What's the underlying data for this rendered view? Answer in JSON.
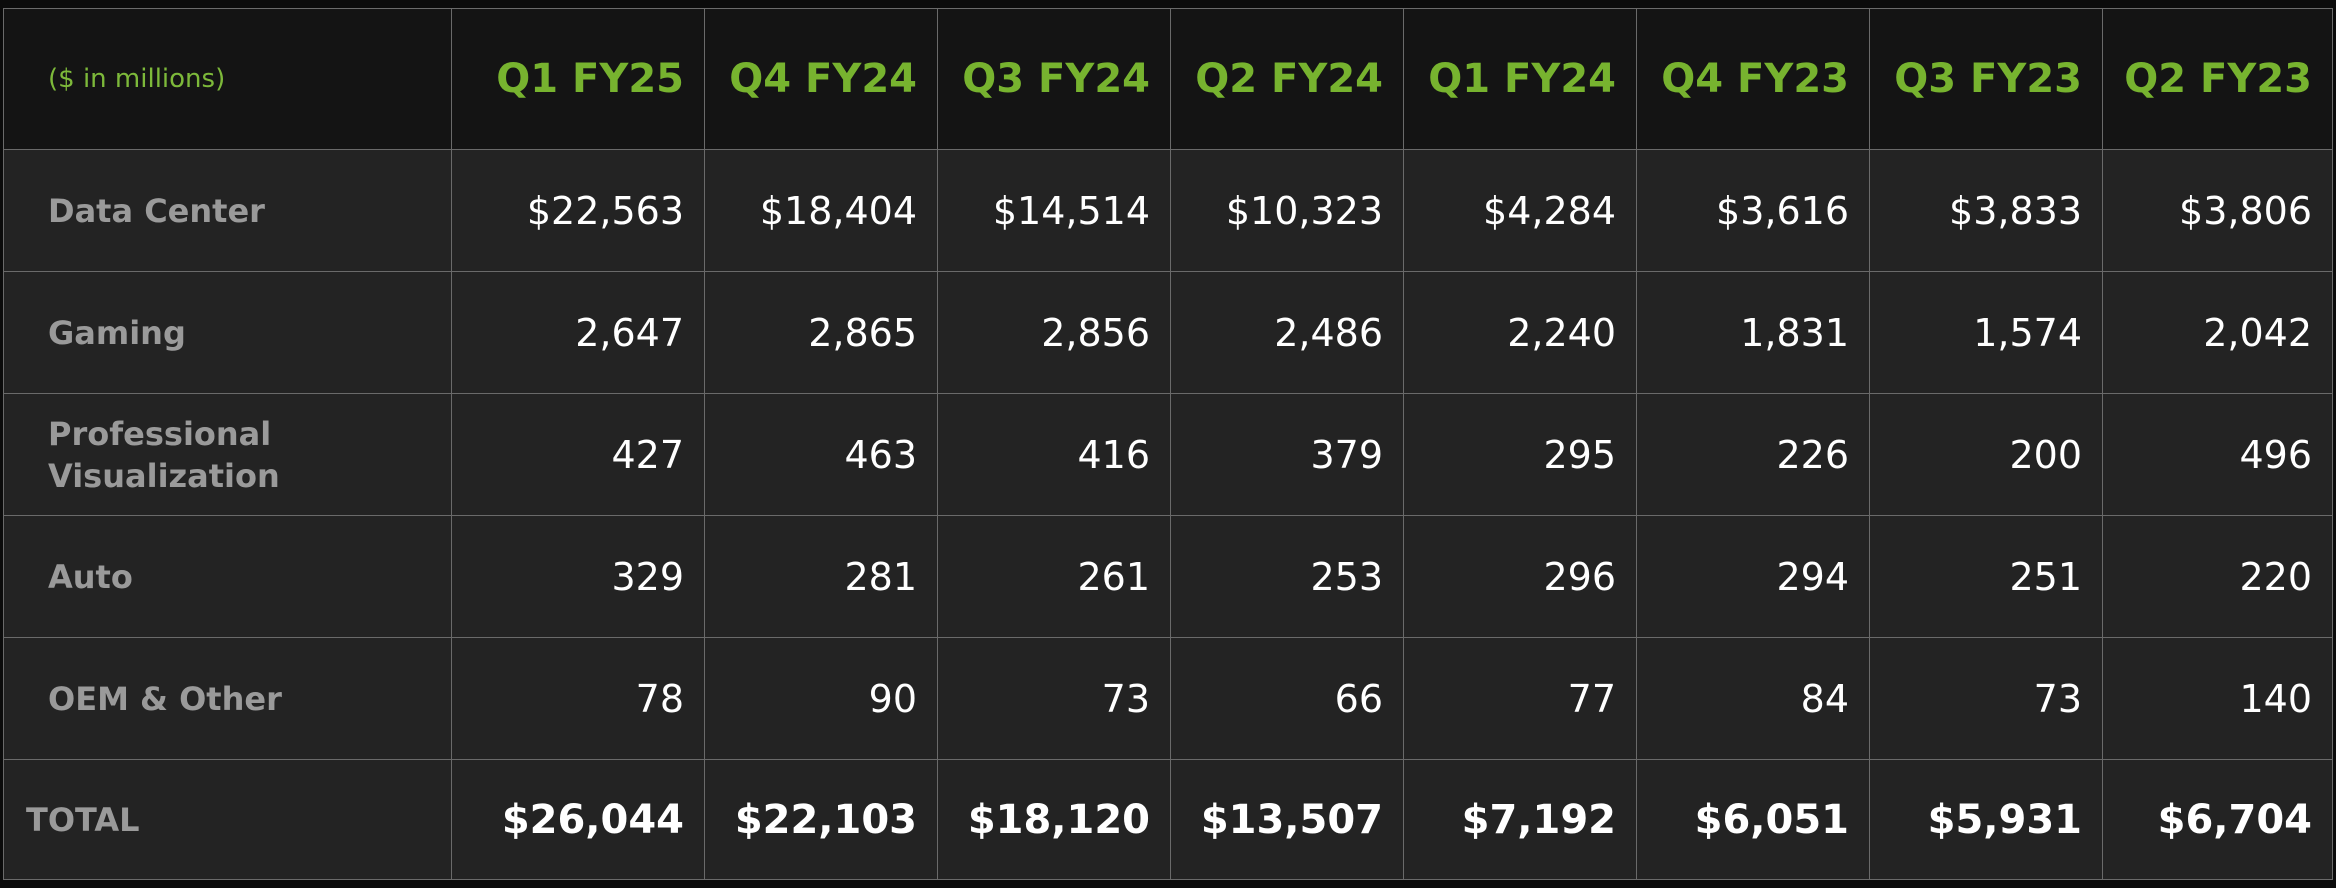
{
  "chart_data": {
    "type": "table",
    "unit_label": "($ in millions)",
    "columns": [
      "Q1 FY25",
      "Q4 FY24",
      "Q3 FY24",
      "Q2 FY24",
      "Q1 FY24",
      "Q4 FY23",
      "Q3 FY23",
      "Q2 FY23"
    ],
    "rows": [
      {
        "label": "Data Center",
        "label_lines": [
          "Data Center"
        ],
        "values": [
          "$22,563",
          "$18,404",
          "$14,514",
          "$10,323",
          "$4,284",
          "$3,616",
          "$3,833",
          "$3,806"
        ]
      },
      {
        "label": "Gaming",
        "label_lines": [
          "Gaming"
        ],
        "values": [
          "2,647",
          "2,865",
          "2,856",
          "2,486",
          "2,240",
          "1,831",
          "1,574",
          "2,042"
        ]
      },
      {
        "label": "Professional Visualization",
        "label_lines": [
          "Professional",
          "Visualization"
        ],
        "values": [
          "427",
          "463",
          "416",
          "379",
          "295",
          "226",
          "200",
          "496"
        ]
      },
      {
        "label": "Auto",
        "label_lines": [
          "Auto"
        ],
        "values": [
          "329",
          "281",
          "261",
          "253",
          "296",
          "294",
          "251",
          "220"
        ]
      },
      {
        "label": "OEM & Other",
        "label_lines": [
          "OEM & Other"
        ],
        "values": [
          "78",
          "90",
          "73",
          "66",
          "77",
          "84",
          "73",
          "140"
        ]
      }
    ],
    "total": {
      "label": "TOTAL",
      "values": [
        "$26,044",
        "$22,103",
        "$18,120",
        "$13,507",
        "$7,192",
        "$6,051",
        "$5,931",
        "$6,704"
      ]
    }
  },
  "colors": {
    "header_text": "#77b32f",
    "label_text": "#9a9a9a",
    "value_text": "#ffffff",
    "header_bg": "#141414",
    "body_bg": "#232323",
    "grid": "#6a6a6a"
  }
}
